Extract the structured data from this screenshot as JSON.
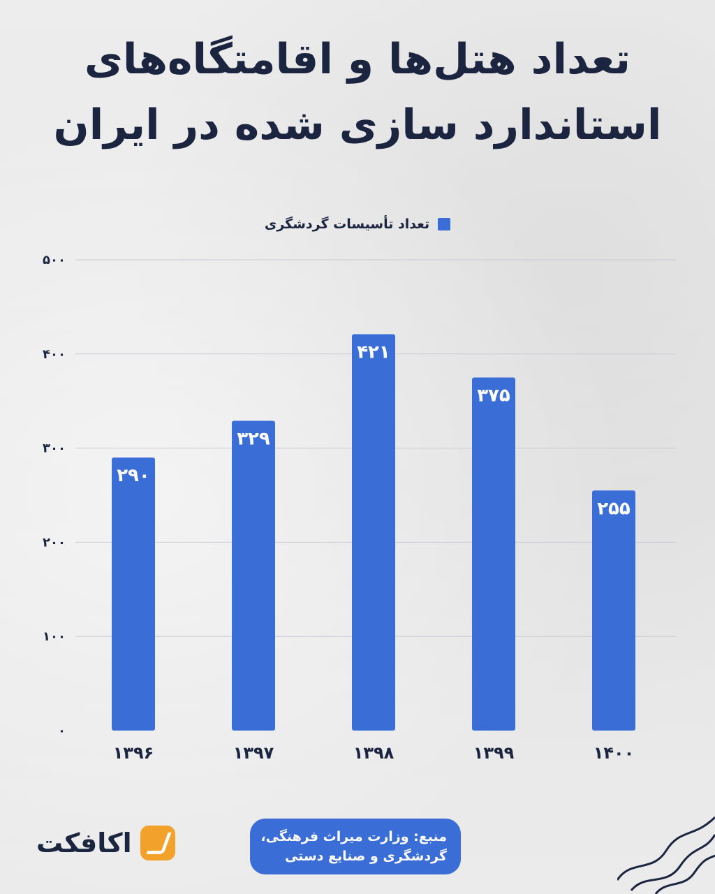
{
  "header": {
    "title_line1": "تعداد هتل‌ها و اقامتگاه‌های",
    "title_line2": "استاندارد سازی شده در ایران"
  },
  "footer": {
    "source_line1": "منبع: وزارت میراث فرهنگی،",
    "source_line2": "گردشگری و صنایع دستی",
    "brand": "اکافکت"
  },
  "colors": {
    "bar": "#3b6dd6",
    "title": "#1c2540",
    "brand_accent": "#f2a22b"
  },
  "chart_data": {
    "type": "bar",
    "title": "تعداد هتل‌ها و اقامتگاه‌های استاندارد سازی شده در ایران",
    "categories": [
      "۱۳۹۶",
      "۱۳۹۷",
      "۱۳۹۸",
      "۱۳۹۹",
      "۱۴۰۰"
    ],
    "series": [
      {
        "name": "تعداد تأسیسات گردشگری",
        "values": [
          290,
          329,
          421,
          375,
          255
        ],
        "labels": [
          "۲۹۰",
          "۳۲۹",
          "۴۲۱",
          "۳۷۵",
          "۲۵۵"
        ]
      }
    ],
    "yticks": [
      0,
      100,
      200,
      300,
      400,
      500
    ],
    "ytick_labels": [
      "۰",
      "۱۰۰",
      "۲۰۰",
      "۳۰۰",
      "۴۰۰",
      "۵۰۰"
    ],
    "ylim": [
      0,
      500
    ],
    "xlabel": "",
    "ylabel": "",
    "grid": true,
    "legend_position": "top-center"
  }
}
